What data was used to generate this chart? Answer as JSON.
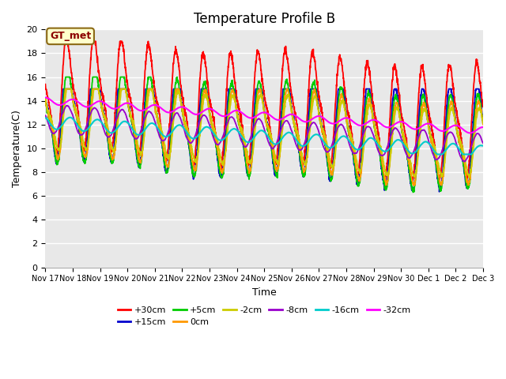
{
  "title": "Temperature Profile B",
  "xlabel": "Time",
  "ylabel": "Temperature(C)",
  "ylim": [
    0,
    20
  ],
  "annotation_text": "GT_met",
  "series_labels": [
    "+30cm",
    "+15cm",
    "+5cm",
    "0cm",
    "-2cm",
    "-8cm",
    "-16cm",
    "-32cm"
  ],
  "series_colors": [
    "#ff0000",
    "#0000cd",
    "#00cc00",
    "#ff9900",
    "#cccc00",
    "#9900cc",
    "#00cccc",
    "#ff00ff"
  ],
  "plot_bg": "#e8e8e8",
  "n_days": 16,
  "seed": 42,
  "legend_ncol_row1": 6,
  "legend_ncol_row2": 2
}
